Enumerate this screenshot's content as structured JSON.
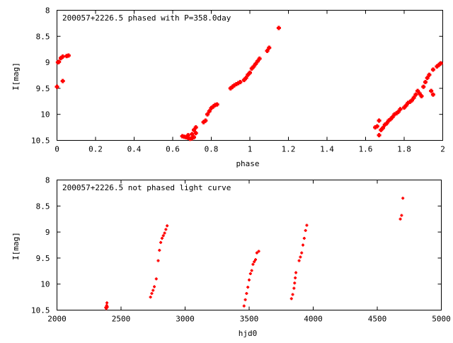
{
  "chart_data": [
    {
      "type": "scatter",
      "title": "200057+2226.5 phased with P=358.0day",
      "xlabel": "phase",
      "ylabel": "I[mag]",
      "xlim": [
        0,
        2
      ],
      "ylim": [
        10.5,
        8
      ],
      "y_inverted": true,
      "grid": false,
      "marker_color": "#ff0000",
      "x_ticks": [
        "0",
        "0.2",
        "0.4",
        "0.6",
        "0.8",
        "1",
        "1.2",
        "1.4",
        "1.6",
        "1.8",
        "2"
      ],
      "y_ticks": [
        "8",
        "8.5",
        "9",
        "9.5",
        "10",
        "10.5"
      ],
      "points": [
        [
          0.0,
          9.47
        ],
        [
          0.005,
          9.0
        ],
        [
          0.01,
          8.99
        ],
        [
          0.02,
          8.92
        ],
        [
          0.03,
          8.89
        ],
        [
          0.03,
          9.36
        ],
        [
          0.05,
          8.88
        ],
        [
          0.06,
          8.87
        ],
        [
          0.65,
          10.42
        ],
        [
          0.66,
          10.43
        ],
        [
          0.67,
          10.44
        ],
        [
          0.68,
          10.45
        ],
        [
          0.68,
          10.4
        ],
        [
          0.69,
          10.47
        ],
        [
          0.7,
          10.46
        ],
        [
          0.7,
          10.38
        ],
        [
          0.71,
          10.44
        ],
        [
          0.71,
          10.3
        ],
        [
          0.72,
          10.36
        ],
        [
          0.72,
          10.25
        ],
        [
          0.76,
          10.15
        ],
        [
          0.77,
          10.12
        ],
        [
          0.78,
          10.0
        ],
        [
          0.79,
          9.94
        ],
        [
          0.8,
          9.88
        ],
        [
          0.81,
          9.85
        ],
        [
          0.82,
          9.82
        ],
        [
          0.83,
          9.81
        ],
        [
          0.9,
          9.5
        ],
        [
          0.91,
          9.47
        ],
        [
          0.92,
          9.44
        ],
        [
          0.93,
          9.42
        ],
        [
          0.94,
          9.4
        ],
        [
          0.95,
          9.38
        ],
        [
          0.97,
          9.34
        ],
        [
          0.98,
          9.3
        ],
        [
          0.99,
          9.24
        ],
        [
          1.0,
          9.2
        ],
        [
          1.01,
          9.12
        ],
        [
          1.02,
          9.08
        ],
        [
          1.03,
          9.03
        ],
        [
          1.04,
          8.98
        ],
        [
          1.05,
          8.93
        ],
        [
          1.09,
          8.78
        ],
        [
          1.1,
          8.72
        ],
        [
          1.15,
          8.34
        ],
        [
          1.65,
          10.25
        ],
        [
          1.66,
          10.23
        ],
        [
          1.67,
          10.12
        ],
        [
          1.67,
          10.4
        ],
        [
          1.68,
          10.3
        ],
        [
          1.69,
          10.26
        ],
        [
          1.7,
          10.2
        ],
        [
          1.71,
          10.17
        ],
        [
          1.72,
          10.12
        ],
        [
          1.73,
          10.09
        ],
        [
          1.74,
          10.05
        ],
        [
          1.75,
          10.0
        ],
        [
          1.76,
          9.98
        ],
        [
          1.77,
          9.95
        ],
        [
          1.78,
          9.9
        ],
        [
          1.8,
          9.87
        ],
        [
          1.81,
          9.83
        ],
        [
          1.82,
          9.78
        ],
        [
          1.83,
          9.76
        ],
        [
          1.84,
          9.73
        ],
        [
          1.85,
          9.68
        ],
        [
          1.86,
          9.62
        ],
        [
          1.87,
          9.55
        ],
        [
          1.88,
          9.6
        ],
        [
          1.89,
          9.65
        ],
        [
          1.9,
          9.47
        ],
        [
          1.91,
          9.38
        ],
        [
          1.92,
          9.3
        ],
        [
          1.93,
          9.24
        ],
        [
          1.94,
          9.55
        ],
        [
          1.95,
          9.62
        ],
        [
          1.95,
          9.14
        ],
        [
          1.97,
          9.08
        ],
        [
          1.98,
          9.05
        ],
        [
          1.99,
          9.02
        ]
      ]
    },
    {
      "type": "scatter",
      "title": "200057+2226.5 not phased light curve",
      "xlabel": "hjd0",
      "ylabel": "I[mag]",
      "xlim": [
        2000,
        5000
      ],
      "ylim": [
        10.5,
        8
      ],
      "y_inverted": true,
      "grid": false,
      "marker_color": "#ff0000",
      "x_ticks": [
        "2000",
        "2500",
        "3000",
        "3500",
        "4000",
        "4500",
        "5000"
      ],
      "y_ticks": [
        "8",
        "8.5",
        "9",
        "9.5",
        "10",
        "10.5"
      ],
      "points": [
        [
          2380,
          10.45
        ],
        [
          2385,
          10.47
        ],
        [
          2388,
          10.41
        ],
        [
          2390,
          10.36
        ],
        [
          2393,
          10.44
        ],
        [
          2730,
          10.25
        ],
        [
          2740,
          10.18
        ],
        [
          2750,
          10.12
        ],
        [
          2760,
          10.05
        ],
        [
          2775,
          9.9
        ],
        [
          2790,
          9.55
        ],
        [
          2800,
          9.35
        ],
        [
          2810,
          9.2
        ],
        [
          2820,
          9.12
        ],
        [
          2830,
          9.07
        ],
        [
          2840,
          9.02
        ],
        [
          2850,
          8.95
        ],
        [
          2860,
          8.88
        ],
        [
          3460,
          10.42
        ],
        [
          3470,
          10.3
        ],
        [
          3480,
          10.18
        ],
        [
          3490,
          10.06
        ],
        [
          3500,
          9.92
        ],
        [
          3510,
          9.8
        ],
        [
          3520,
          9.74
        ],
        [
          3530,
          9.62
        ],
        [
          3540,
          9.57
        ],
        [
          3550,
          9.53
        ],
        [
          3560,
          9.4
        ],
        [
          3575,
          9.37
        ],
        [
          3830,
          10.28
        ],
        [
          3840,
          10.2
        ],
        [
          3850,
          10.08
        ],
        [
          3855,
          9.98
        ],
        [
          3860,
          9.88
        ],
        [
          3865,
          9.78
        ],
        [
          3890,
          9.55
        ],
        [
          3900,
          9.48
        ],
        [
          3910,
          9.4
        ],
        [
          3920,
          9.25
        ],
        [
          3930,
          9.12
        ],
        [
          3940,
          8.97
        ],
        [
          3950,
          8.87
        ],
        [
          4680,
          8.75
        ],
        [
          4690,
          8.68
        ],
        [
          4700,
          8.35
        ]
      ]
    }
  ]
}
